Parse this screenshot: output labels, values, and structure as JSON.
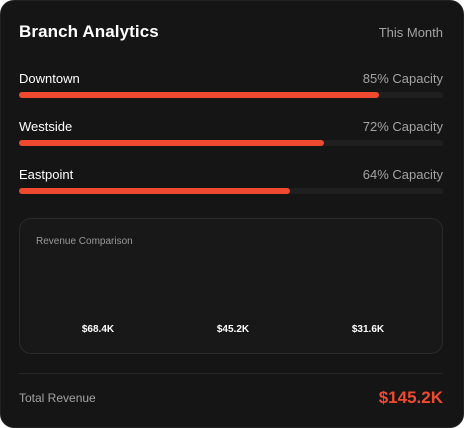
{
  "header": {
    "title": "Branch Analytics",
    "period": "This Month"
  },
  "branches": [
    {
      "name": "Downtown",
      "capacity_label": "85% Capacity",
      "progress": 0.85
    },
    {
      "name": "Westside",
      "capacity_label": "72% Capacity",
      "progress": 0.72
    },
    {
      "name": "Eastpoint",
      "capacity_label": "64% Capacity",
      "progress": 0.64
    }
  ],
  "revenue_comparison": {
    "title": "Revenue Comparison",
    "values": [
      "$68.4K",
      "$45.2K",
      "$31.6K"
    ]
  },
  "footer": {
    "label": "Total Revenue",
    "value": "$145.2K"
  },
  "colors": {
    "accent": "#ef4a30",
    "background": "#151515",
    "track": "#1f1f1f"
  }
}
